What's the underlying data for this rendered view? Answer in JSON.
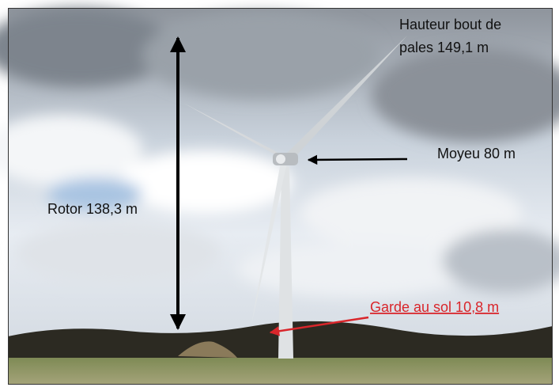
{
  "labels": {
    "tip_height": [
      "Hauteur bout de",
      "pales 149,1 m"
    ],
    "hub": "Moyeu 80 m",
    "rotor": "Rotor 138,3 m",
    "ground_clearance": "Garde au sol 10,8 m"
  }
}
